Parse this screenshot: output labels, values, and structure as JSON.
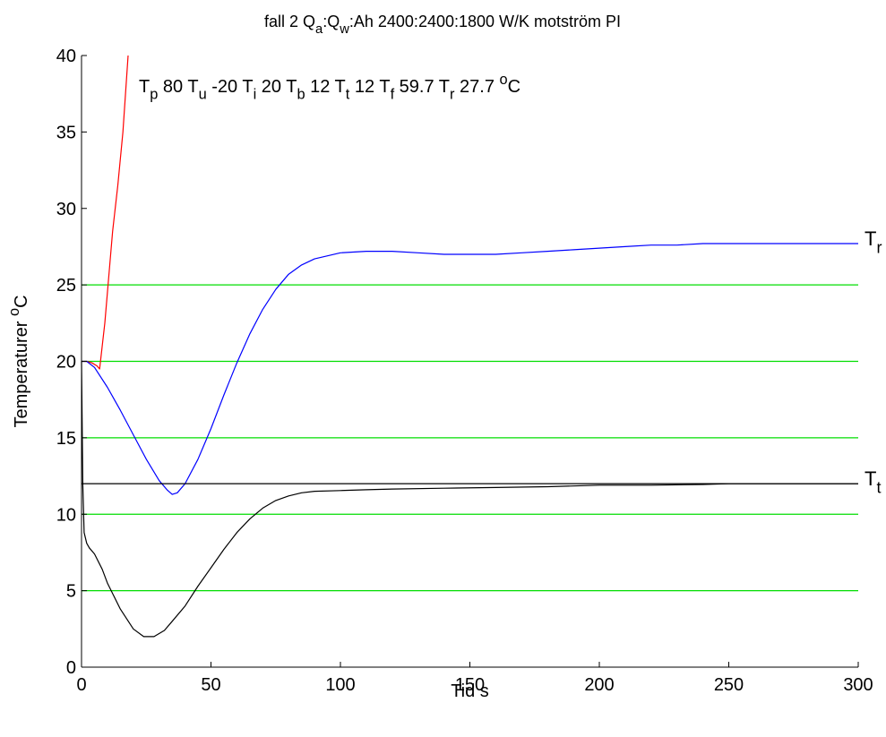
{
  "chart_data": {
    "type": "line",
    "title": {
      "parts": [
        {
          "text": "fall 2   Q"
        },
        {
          "text": "a",
          "sub": true
        },
        {
          "text": ":Q"
        },
        {
          "text": "w",
          "sub": true
        },
        {
          "text": ":Ah    2400:2400:1800 W/K      motström    PI"
        }
      ]
    },
    "annotation": {
      "parts": [
        {
          "text": "T"
        },
        {
          "text": "p",
          "sub": true
        },
        {
          "text": "  80     T"
        },
        {
          "text": "u",
          "sub": true
        },
        {
          "text": "  -20    T"
        },
        {
          "text": "i",
          "sub": true
        },
        {
          "text": "  20    T"
        },
        {
          "text": "b",
          "sub": true
        },
        {
          "text": "  12    T"
        },
        {
          "text": "t",
          "sub": true
        },
        {
          "text": "  12    T"
        },
        {
          "text": "f",
          "sub": true
        },
        {
          "text": "  59.7    T"
        },
        {
          "text": "r",
          "sub": true
        },
        {
          "text": "  27.7 "
        },
        {
          "text": "o",
          "sup": true
        },
        {
          "text": "C"
        }
      ]
    },
    "xlabel": "Tid s",
    "ylabel": {
      "parts": [
        {
          "text": "Temperaturer "
        },
        {
          "text": "o",
          "sup": true
        },
        {
          "text": "C"
        }
      ]
    },
    "xlim": [
      0,
      300
    ],
    "ylim": [
      0,
      40
    ],
    "xticks": [
      0,
      50,
      100,
      150,
      200,
      250,
      300
    ],
    "yticks": [
      0,
      5,
      10,
      15,
      20,
      25,
      30,
      35,
      40
    ],
    "reference_lines": {
      "color": "#00dd00",
      "y": [
        5,
        10,
        15,
        20,
        25
      ]
    },
    "series": [
      {
        "color": "#ff0000",
        "x": [
          0,
          2,
          4,
          6,
          7,
          8,
          9,
          10,
          11,
          12,
          14,
          16,
          17,
          18
        ],
        "y": [
          20,
          20,
          19.9,
          19.7,
          19.5,
          21,
          22.5,
          24.5,
          26.5,
          28.5,
          31.5,
          35,
          37.5,
          40
        ]
      },
      {
        "color": "#0000ff",
        "x": [
          0,
          2,
          5,
          10,
          15,
          20,
          25,
          30,
          33,
          35,
          37,
          40,
          45,
          50,
          55,
          60,
          65,
          70,
          75,
          80,
          85,
          90,
          95,
          100,
          110,
          120,
          130,
          140,
          150,
          160,
          170,
          180,
          190,
          200,
          210,
          220,
          230,
          240,
          250,
          260,
          270,
          280,
          290,
          300
        ],
        "y": [
          20,
          20,
          19.6,
          18.3,
          16.8,
          15.2,
          13.6,
          12.2,
          11.6,
          11.3,
          11.4,
          12,
          13.6,
          15.6,
          17.8,
          19.9,
          21.8,
          23.4,
          24.7,
          25.7,
          26.3,
          26.7,
          26.9,
          27.1,
          27.2,
          27.2,
          27.1,
          27.0,
          27.0,
          27.0,
          27.1,
          27.2,
          27.3,
          27.4,
          27.5,
          27.6,
          27.6,
          27.7,
          27.7,
          27.7,
          27.7,
          27.7,
          27.7,
          27.7
        ]
      },
      {
        "color": "#000000",
        "x": [
          0,
          0.5,
          1,
          2,
          3,
          5,
          8,
          10,
          15,
          20,
          24,
          28,
          32,
          35,
          40,
          45,
          50,
          55,
          60,
          65,
          70,
          75,
          80,
          85,
          90,
          100,
          110,
          120,
          140,
          160,
          180,
          200,
          220,
          240,
          250,
          260,
          280,
          300
        ],
        "y": [
          20,
          12,
          8.8,
          8.1,
          7.8,
          7.4,
          6.4,
          5.5,
          3.8,
          2.5,
          2.0,
          2.0,
          2.4,
          3.0,
          4.0,
          5.3,
          6.5,
          7.7,
          8.8,
          9.7,
          10.4,
          10.9,
          11.2,
          11.4,
          11.5,
          11.55,
          11.6,
          11.65,
          11.7,
          11.75,
          11.8,
          11.9,
          11.9,
          11.95,
          12.0,
          12.0,
          12.0,
          12.0
        ]
      },
      {
        "color": "#000000",
        "x": [
          0,
          300
        ],
        "y": [
          12,
          12
        ]
      }
    ],
    "line_labels": [
      {
        "letter": "T",
        "sub": "r",
        "y": 27.7
      },
      {
        "letter": "T",
        "sub": "t",
        "y": 12
      }
    ],
    "grid": false,
    "legend": "none"
  }
}
